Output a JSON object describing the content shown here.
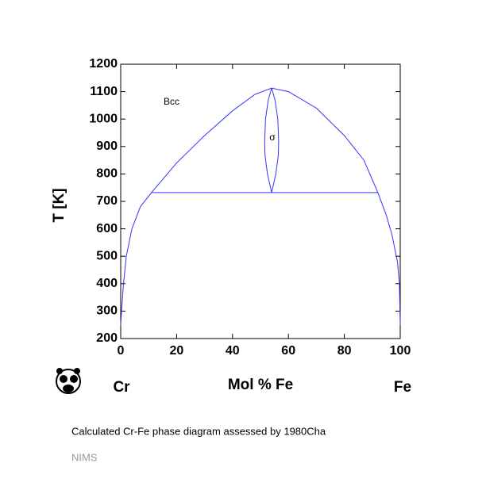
{
  "chart_data": {
    "type": "line",
    "x_label": "Mol % Fe",
    "y_label": "T [K]",
    "left_label": "Cr",
    "right_label": "Fe",
    "annotations": [
      "Bcc",
      "σ"
    ],
    "xlim": [
      0,
      100
    ],
    "xticks": [
      0,
      20,
      40,
      60,
      80,
      100
    ],
    "ylim": [
      200,
      1200
    ],
    "yticks": [
      200,
      300,
      400,
      500,
      600,
      700,
      800,
      900,
      1000,
      1100,
      1200
    ],
    "grid": false,
    "series": [
      {
        "color": "#3333ff",
        "x": [
          0,
          0.3,
          1,
          2,
          4,
          7,
          11,
          20,
          30,
          40,
          48,
          54,
          60,
          70,
          80,
          87,
          92,
          95,
          97,
          99,
          99.7,
          100
        ],
        "values": [
          250,
          300,
          400,
          500,
          600,
          680,
          732,
          840,
          940,
          1030,
          1090,
          1113,
          1100,
          1040,
          940,
          850,
          732,
          650,
          580,
          480,
          400,
          250
        ]
      },
      {
        "color": "#3333ff",
        "x": [
          54,
          52.5,
          51.6,
          51.5,
          51.8,
          52.8,
          54
        ],
        "values": [
          732,
          800,
          870,
          920,
          1000,
          1070,
          1113
        ]
      },
      {
        "color": "#3333ff",
        "x": [
          54,
          55.5,
          56.4,
          56.5,
          56.2,
          55.2,
          54
        ],
        "values": [
          732,
          800,
          870,
          920,
          1000,
          1070,
          1113
        ]
      },
      {
        "color": "#3333ff",
        "x": [
          11,
          92
        ],
        "values": [
          732,
          732
        ]
      }
    ]
  },
  "caption": "Calculated Cr-Fe phase diagram assessed by 1980Cha",
  "footer": "NIMS"
}
